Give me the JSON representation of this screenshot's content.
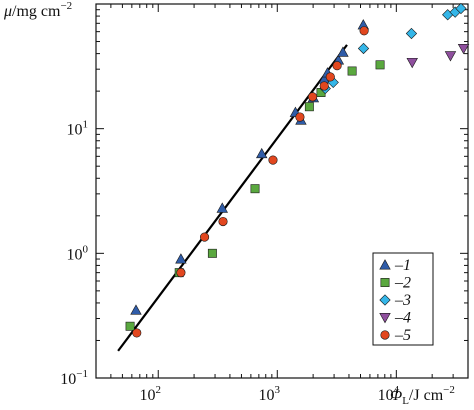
{
  "chart_data": {
    "type": "scatter",
    "xscale": "log",
    "yscale": "log",
    "xlim": [
      30,
      40000
    ],
    "ylim": [
      0.1,
      100
    ],
    "grid": false,
    "legend_placement": "bottom-right",
    "xlabel": {
      "symbol": "Φ",
      "subscript": "L",
      "unit": "/J cm",
      "unit_exponent": "−2"
    },
    "ylabel": {
      "symbol": "μ",
      "unit": "/mg cm",
      "unit_exponent": "−2"
    },
    "x_ticks": [
      {
        "value": 100,
        "base": "10",
        "exponent": "2"
      },
      {
        "value": 1000,
        "base": "10",
        "exponent": "3"
      },
      {
        "value": 10000,
        "base": "10",
        "exponent": "4"
      }
    ],
    "y_ticks": [
      {
        "value": 0.1,
        "base": "10",
        "exponent": "−1"
      },
      {
        "value": 1,
        "base": "10",
        "exponent": "0"
      },
      {
        "value": 10,
        "base": "10",
        "exponent": "1"
      }
    ],
    "series": [
      {
        "name": "1",
        "marker": "triangle-up",
        "color": "#2f5ca8",
        "points": [
          [
            65,
            0.35
          ],
          [
            155,
            0.9
          ],
          [
            345,
            2.3
          ],
          [
            740,
            6.3
          ],
          [
            1420,
            13.5
          ],
          [
            1580,
            11.7
          ],
          [
            2010,
            17.7
          ],
          [
            2480,
            25.0
          ],
          [
            2640,
            28.0
          ],
          [
            3260,
            35.5
          ],
          [
            3560,
            41.0
          ],
          [
            5280,
            68.0
          ]
        ]
      },
      {
        "name": "2",
        "marker": "square",
        "color": "#5aa83f",
        "points": [
          [
            58,
            0.26
          ],
          [
            150,
            0.7
          ],
          [
            285,
            1.0
          ],
          [
            650,
            3.3
          ],
          [
            1860,
            15.0
          ],
          [
            2330,
            19.5
          ],
          [
            4250,
            29.0
          ],
          [
            7300,
            32.5
          ]
        ]
      },
      {
        "name": "3",
        "marker": "diamond",
        "color": "#34b6e8",
        "points": [
          [
            2530,
            21.0
          ],
          [
            2950,
            23.5
          ],
          [
            5300,
            44.0
          ],
          [
            13400,
            58.0
          ],
          [
            27000,
            82.0
          ],
          [
            31200,
            86.0
          ],
          [
            34900,
            92.0
          ]
        ]
      },
      {
        "name": "4",
        "marker": "triangle-down",
        "color": "#8f4f9e",
        "points": [
          [
            13600,
            34.0
          ],
          [
            28500,
            38.5
          ],
          [
            36700,
            44.0
          ]
        ]
      },
      {
        "name": "5",
        "marker": "circle",
        "color": "#e2471f",
        "points": [
          [
            66,
            0.23
          ],
          [
            155,
            0.7
          ],
          [
            245,
            1.35
          ],
          [
            350,
            1.8
          ],
          [
            920,
            5.6
          ],
          [
            1550,
            12.4
          ],
          [
            1980,
            18.0
          ],
          [
            2480,
            22.0
          ],
          [
            2790,
            26.0
          ],
          [
            3180,
            32.0
          ],
          [
            5360,
            61.0
          ]
        ]
      }
    ],
    "fit_line": {
      "color": "#000000",
      "points": [
        [
          46,
          0.165
        ],
        [
          3850,
          47.0
        ]
      ]
    }
  }
}
